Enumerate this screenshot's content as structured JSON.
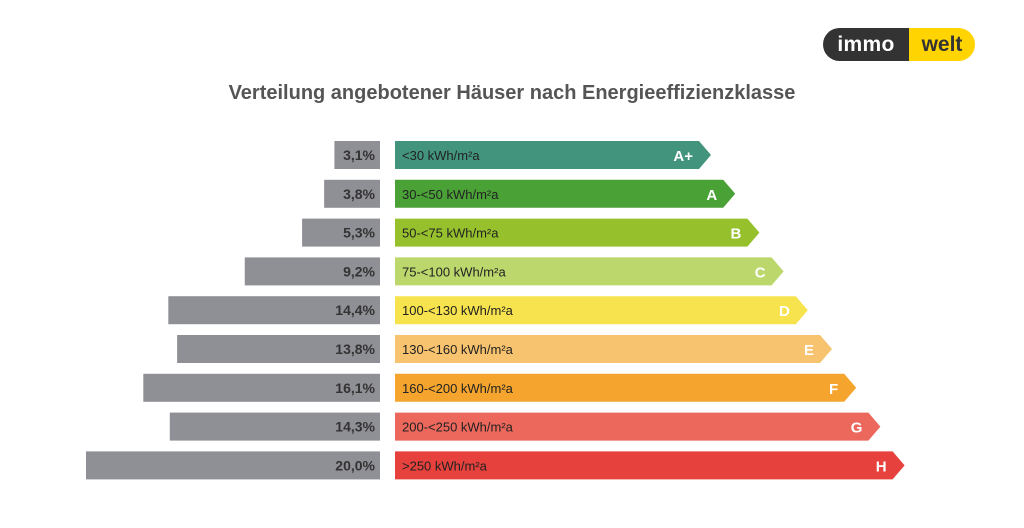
{
  "logo": {
    "left": "immo",
    "right": "welt"
  },
  "chart_data": {
    "type": "bar",
    "title": "Verteilung angebotener Häuser nach Energieeffizienzklasse",
    "xlabel": "",
    "ylabel": "",
    "values": [
      3.1,
      3.8,
      5.3,
      9.2,
      14.4,
      13.8,
      16.1,
      14.3,
      20.0
    ],
    "value_labels": [
      "3,1%",
      "3,8%",
      "5,3%",
      "9,2%",
      "14,4%",
      "13,8%",
      "16,1%",
      "14,3%",
      "20,0%"
    ],
    "categories": [
      "<30 kWh/m²a",
      "30-<50 kWh/m²a",
      "50-<75 kWh/m²a",
      "75-<100 kWh/m²a",
      "100-<130 kWh/m²a",
      "130-<160 kWh/m²a",
      "160-<200 kWh/m²a",
      "200-<250 kWh/m²a",
      ">250 kWh/m²a"
    ],
    "classes": [
      "A+",
      "A",
      "B",
      "C",
      "D",
      "E",
      "F",
      "G",
      "H"
    ],
    "colors": [
      "#42947c",
      "#4aa237",
      "#96c12d",
      "#bcd86c",
      "#f7e34d",
      "#f8c36f",
      "#f5a52d",
      "#ec685c",
      "#e6413c"
    ],
    "value_bar_color": "#8f8f96",
    "grid": false,
    "legend": "none"
  }
}
